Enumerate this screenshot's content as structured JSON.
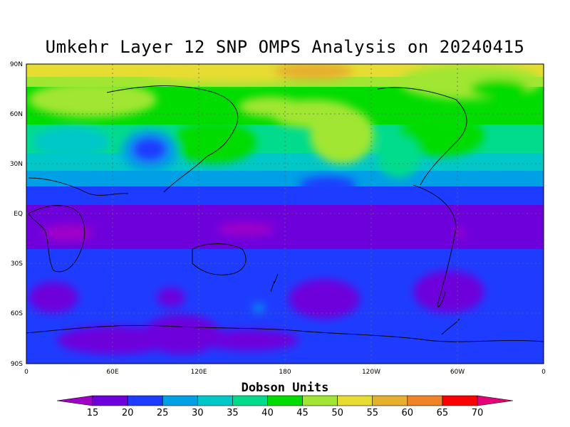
{
  "title": "Umkehr Layer 12 SNP OMPS Analysis on 20240415",
  "map": {
    "lat_labels": [
      "90N",
      "60N",
      "30N",
      "EQ",
      "30S",
      "60S",
      "90S"
    ],
    "lon_labels": [
      "0",
      "60E",
      "120E",
      "180",
      "120W",
      "60W",
      "0"
    ]
  },
  "colorbar": {
    "title": "Dobson Units",
    "labels": [
      "15",
      "20",
      "25",
      "30",
      "35",
      "40",
      "45",
      "50",
      "55",
      "60",
      "65",
      "70"
    ],
    "colors": [
      "#a000c8",
      "#6e00dc",
      "#1e3cff",
      "#00a0e6",
      "#00c8c8",
      "#00dc8c",
      "#00dc00",
      "#a0e632",
      "#e6dc32",
      "#e6af2d",
      "#f08228",
      "#fa0000",
      "#e6007a"
    ]
  }
}
